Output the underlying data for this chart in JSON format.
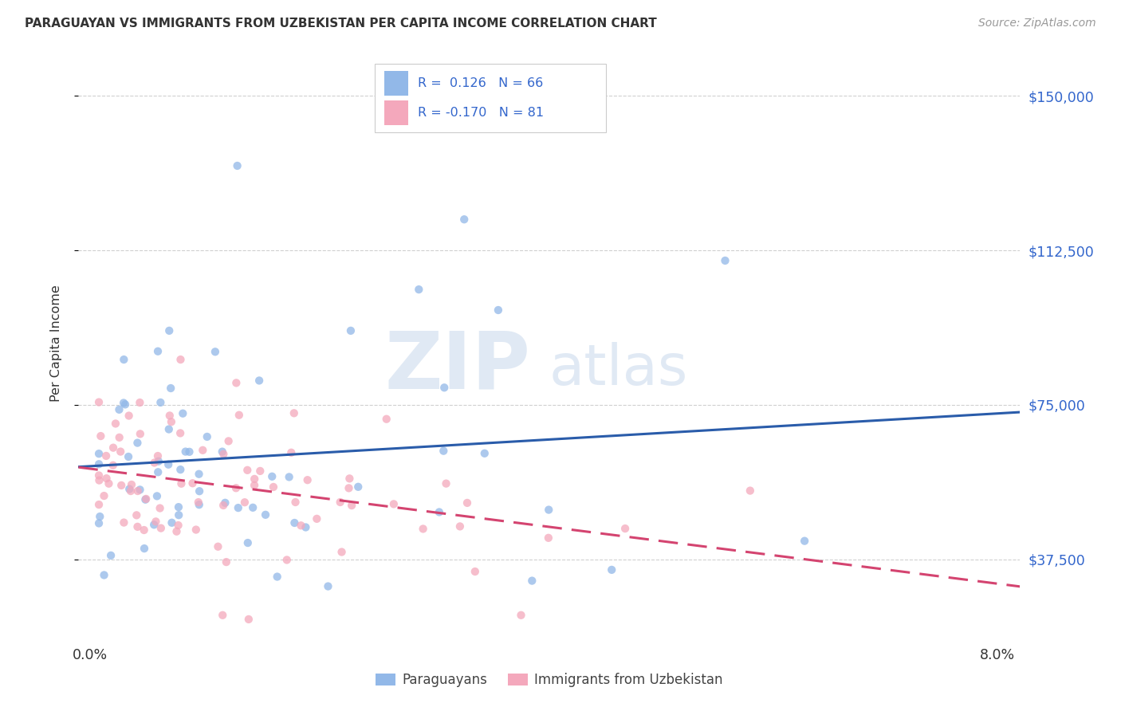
{
  "title": "PARAGUAYAN VS IMMIGRANTS FROM UZBEKISTAN PER CAPITA INCOME CORRELATION CHART",
  "source": "Source: ZipAtlas.com",
  "ylabel": "Per Capita Income",
  "watermark_zip": "ZIP",
  "watermark_atlas": "atlas",
  "legend_blue_label": "Paraguayans",
  "legend_pink_label": "Immigrants from Uzbekistan",
  "yticks": [
    37500,
    75000,
    112500,
    150000
  ],
  "ytick_labels": [
    "$37,500",
    "$75,000",
    "$112,500",
    "$150,000"
  ],
  "xlim": [
    -0.001,
    0.082
  ],
  "ylim": [
    18000,
    162000
  ],
  "blue_color": "#92b8e8",
  "pink_color": "#f4a8bc",
  "blue_line_color": "#2a5caa",
  "pink_line_color": "#d44470",
  "pink_line_dash": [
    8,
    4
  ],
  "grid_color": "#d0d0d0",
  "background_color": "#ffffff",
  "title_color": "#333333",
  "source_color": "#999999",
  "ytick_color": "#3366cc",
  "xtick_color": "#333333",
  "ylabel_color": "#333333",
  "legend_text_color": "#3366cc",
  "scatter_size": 55,
  "scatter_alpha": 0.75
}
